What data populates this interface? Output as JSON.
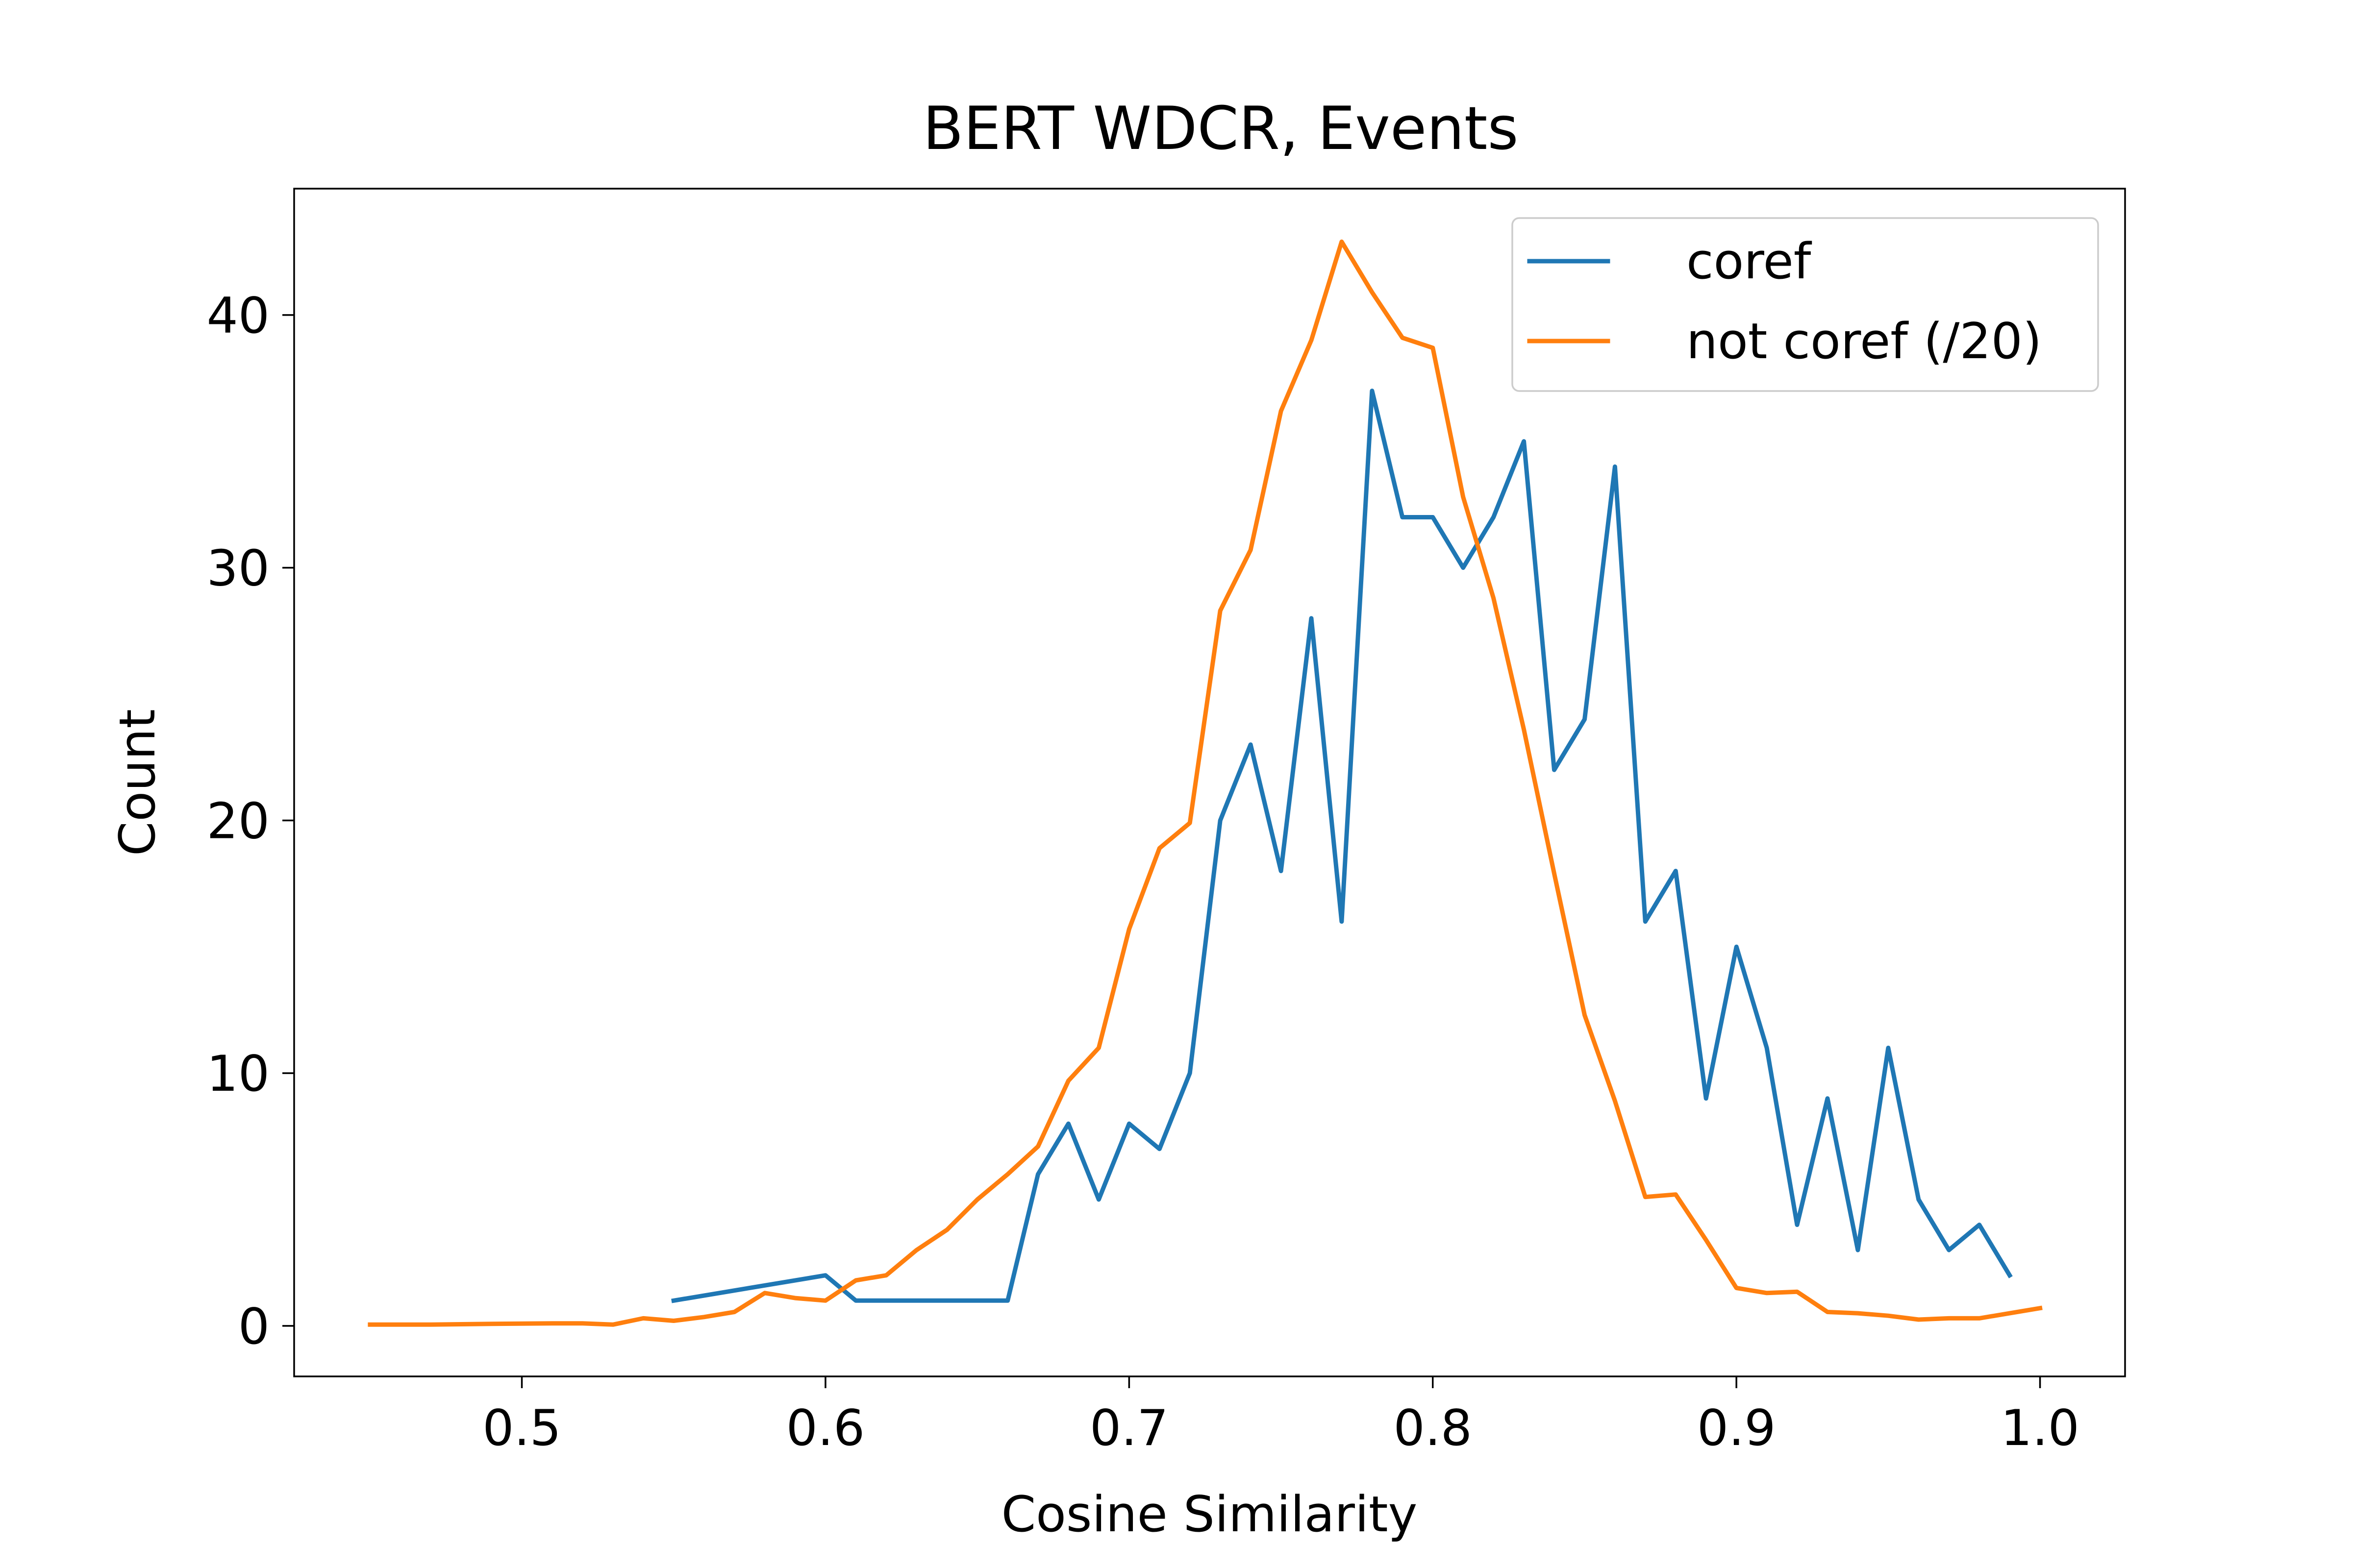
{
  "chart_data": {
    "type": "line",
    "title": "BERT WDCR, Events",
    "xlabel": "Cosine Similarity",
    "ylabel": "Count",
    "xlim": [
      0.425,
      1.028
    ],
    "ylim": [
      -2.0,
      45.0
    ],
    "xticks": [
      0.5,
      0.6,
      0.7,
      0.8,
      0.9,
      1.0
    ],
    "xtick_labels": [
      "0.5",
      "0.6",
      "0.7",
      "0.8",
      "0.9",
      "1.0"
    ],
    "yticks": [
      0,
      10,
      20,
      30,
      40
    ],
    "ytick_labels": [
      "0",
      "10",
      "20",
      "30",
      "40"
    ],
    "grid": false,
    "legend": {
      "position": "top-right"
    },
    "series": [
      {
        "name": "coref",
        "color": "#1f77b4",
        "x": [
          0.55,
          0.6,
          0.61,
          0.62,
          0.63,
          0.64,
          0.65,
          0.66,
          0.67,
          0.68,
          0.69,
          0.7,
          0.71,
          0.72,
          0.73,
          0.74,
          0.75,
          0.76,
          0.77,
          0.78,
          0.79,
          0.8,
          0.81,
          0.82,
          0.83,
          0.84,
          0.85,
          0.86,
          0.87,
          0.88,
          0.89,
          0.9,
          0.91,
          0.92,
          0.93,
          0.94,
          0.95,
          0.96,
          0.97,
          0.98,
          0.99
        ],
        "y": [
          1,
          2,
          1,
          1,
          1,
          1,
          1,
          1,
          6,
          8,
          5,
          8,
          7,
          10,
          20,
          23,
          18,
          28,
          16,
          37,
          32,
          32,
          30,
          32,
          35,
          22,
          24,
          34,
          16,
          18,
          9,
          15,
          11,
          4,
          9,
          3,
          11,
          5,
          3,
          4,
          2
        ]
      },
      {
        "name": "not coref (/20)",
        "color": "#ff7f0e",
        "x": [
          0.45,
          0.47,
          0.49,
          0.51,
          0.52,
          0.53,
          0.54,
          0.55,
          0.56,
          0.57,
          0.58,
          0.59,
          0.6,
          0.61,
          0.62,
          0.63,
          0.64,
          0.65,
          0.66,
          0.67,
          0.68,
          0.69,
          0.7,
          0.71,
          0.72,
          0.73,
          0.74,
          0.75,
          0.76,
          0.77,
          0.78,
          0.79,
          0.8,
          0.81,
          0.82,
          0.83,
          0.84,
          0.85,
          0.86,
          0.87,
          0.88,
          0.89,
          0.9,
          0.91,
          0.92,
          0.93,
          0.94,
          0.95,
          0.96,
          0.97,
          0.98,
          0.99,
          1.0
        ],
        "y": [
          0.05,
          0.05,
          0.08,
          0.1,
          0.1,
          0.05,
          0.3,
          0.2,
          0.35,
          0.55,
          1.3,
          1.1,
          1.0,
          1.8,
          2.0,
          3.0,
          3.8,
          5.0,
          6.0,
          7.1,
          9.7,
          11.0,
          15.7,
          18.9,
          19.9,
          28.3,
          30.7,
          36.2,
          39.0,
          42.9,
          40.9,
          39.1,
          38.7,
          32.8,
          28.8,
          23.6,
          17.9,
          12.3,
          8.9,
          5.1,
          5.2,
          3.4,
          1.5,
          1.3,
          1.35,
          0.55,
          0.5,
          0.4,
          0.25,
          0.3,
          0.3,
          0.5,
          0.7
        ]
      }
    ]
  }
}
